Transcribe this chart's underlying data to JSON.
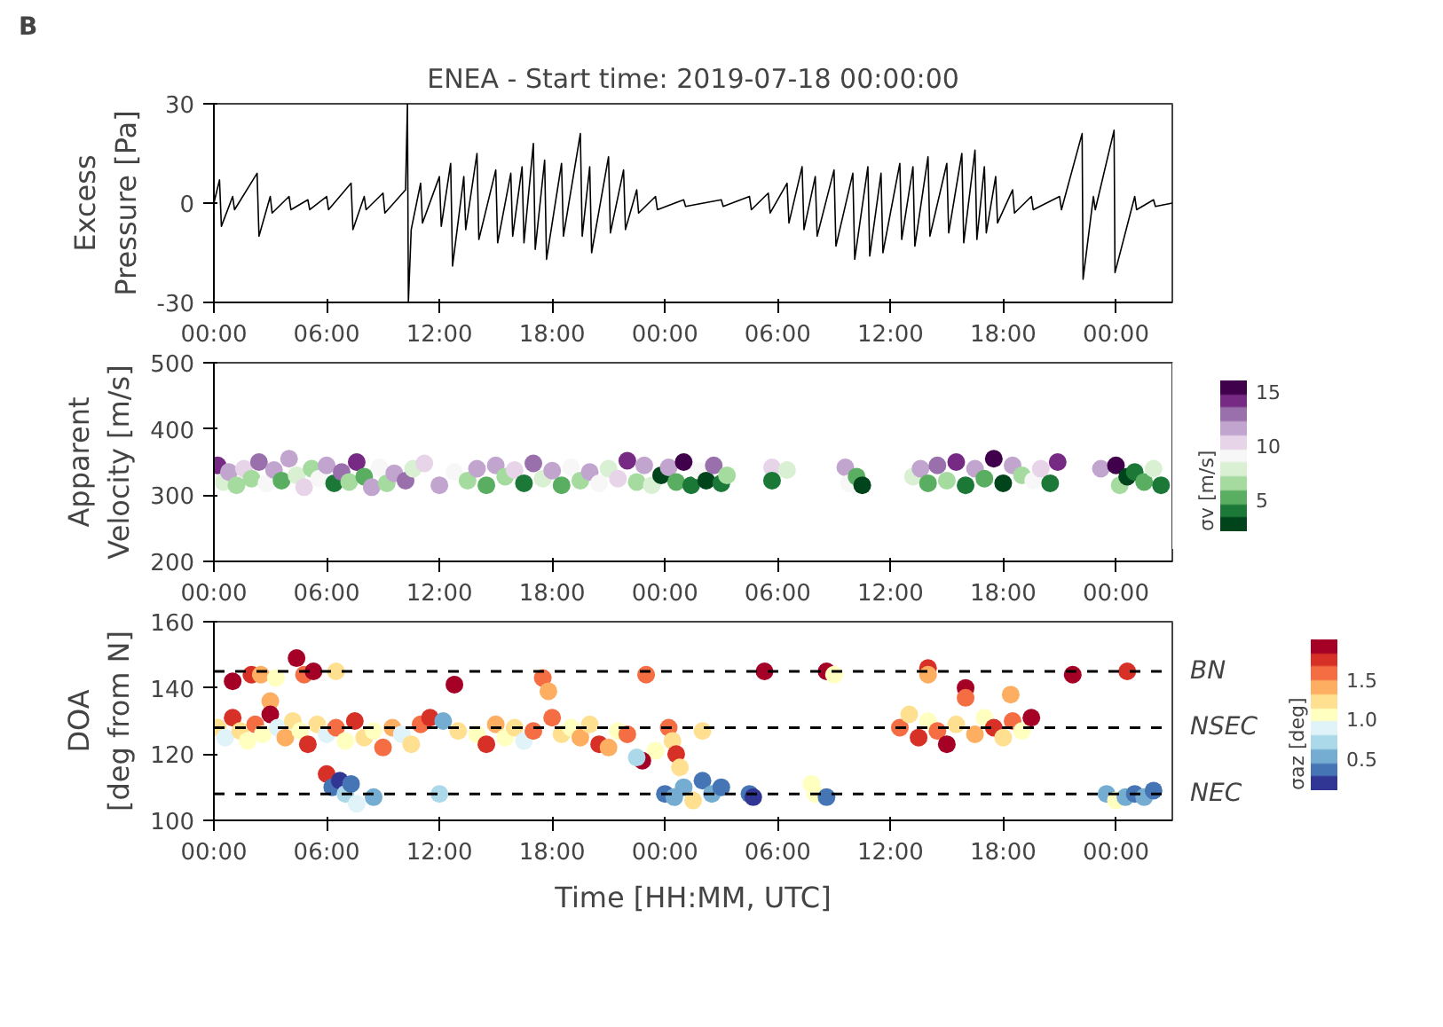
{
  "chart_data": [
    {
      "type": "line",
      "title": "ENEA - Start time: 2019-07-18 00:00:00",
      "annotations": [
        "B"
      ],
      "ylabel": "Excess\nPressure [Pa]",
      "color": "#000000",
      "x": [
        "2019-07-18T00:00",
        "2019-07-18T00:18",
        "2019-07-18T00:24",
        "2019-07-18T01:00",
        "2019-07-18T01:06",
        "2019-07-18T02:18",
        "2019-07-18T02:24",
        "2019-07-18T03:00",
        "2019-07-18T03:06",
        "2019-07-18T04:00",
        "2019-07-18T04:06",
        "2019-07-18T05:00",
        "2019-07-18T05:06",
        "2019-07-18T06:00",
        "2019-07-18T06:06",
        "2019-07-18T07:18",
        "2019-07-18T07:24",
        "2019-07-18T08:00",
        "2019-07-18T08:06",
        "2019-07-18T09:00",
        "2019-07-18T09:06",
        "2019-07-18T10:12",
        "2019-07-18T10:18",
        "2019-07-18T10:21",
        "2019-07-18T10:30",
        "2019-07-18T11:00",
        "2019-07-18T11:06",
        "2019-07-18T12:00",
        "2019-07-18T12:06",
        "2019-07-18T12:36",
        "2019-07-18T12:42",
        "2019-07-18T13:18",
        "2019-07-18T13:24",
        "2019-07-18T14:00",
        "2019-07-18T14:06",
        "2019-07-18T15:00",
        "2019-07-18T15:06",
        "2019-07-18T15:48",
        "2019-07-18T15:54",
        "2019-07-18T16:24",
        "2019-07-18T16:30",
        "2019-07-18T17:00",
        "2019-07-18T17:06",
        "2019-07-18T17:36",
        "2019-07-18T17:42",
        "2019-07-18T18:30",
        "2019-07-18T18:36",
        "2019-07-18T19:30",
        "2019-07-18T19:36",
        "2019-07-18T20:00",
        "2019-07-18T20:06",
        "2019-07-18T21:00",
        "2019-07-18T21:06",
        "2019-07-18T21:48",
        "2019-07-18T21:54",
        "2019-07-18T22:30",
        "2019-07-18T22:36",
        "2019-07-18T23:30",
        "2019-07-18T23:36",
        "2019-07-19T01:00",
        "2019-07-19T01:06",
        "2019-07-19T03:00",
        "2019-07-19T03:06",
        "2019-07-19T04:30",
        "2019-07-19T04:36",
        "2019-07-19T05:30",
        "2019-07-19T05:36",
        "2019-07-19T06:30",
        "2019-07-19T06:36",
        "2019-07-19T07:18",
        "2019-07-19T07:24",
        "2019-07-19T08:00",
        "2019-07-19T08:06",
        "2019-07-19T09:00",
        "2019-07-19T09:06",
        "2019-07-19T10:00",
        "2019-07-19T10:06",
        "2019-07-19T10:48",
        "2019-07-19T10:54",
        "2019-07-19T11:30",
        "2019-07-19T11:36",
        "2019-07-19T12:30",
        "2019-07-19T12:36",
        "2019-07-19T13:12",
        "2019-07-19T13:18",
        "2019-07-19T14:00",
        "2019-07-19T14:06",
        "2019-07-19T15:00",
        "2019-07-19T15:06",
        "2019-07-19T15:48",
        "2019-07-19T15:54",
        "2019-07-19T16:30",
        "2019-07-19T16:36",
        "2019-07-19T17:00",
        "2019-07-19T17:06",
        "2019-07-19T17:36",
        "2019-07-19T17:42",
        "2019-07-19T18:30",
        "2019-07-19T18:36",
        "2019-07-19T19:30",
        "2019-07-19T19:36",
        "2019-07-19T21:00",
        "2019-07-19T21:06",
        "2019-07-19T22:12",
        "2019-07-19T22:15",
        "2019-07-19T22:48",
        "2019-07-19T22:54",
        "2019-07-19T23:54",
        "2019-07-19T23:57",
        "2019-07-20T01:00",
        "2019-07-20T01:06",
        "2019-07-20T02:00",
        "2019-07-20T02:06",
        "2019-07-20T03:00"
      ],
      "values": [
        0,
        7,
        -7,
        2,
        -2,
        9,
        -10,
        2,
        -3,
        2,
        -2,
        1,
        -2,
        2,
        -2,
        6,
        -8,
        2,
        -2,
        3,
        -3,
        4,
        30,
        -30,
        -8,
        6,
        -6,
        8,
        -7,
        12,
        -19,
        8,
        -8,
        15,
        -11,
        10,
        -12,
        9,
        -10,
        11,
        -12,
        18,
        -14,
        13,
        -17,
        12,
        -10,
        21,
        -10,
        11,
        -15,
        14,
        -9,
        10,
        -8,
        4,
        -3,
        2,
        -2,
        1,
        -1,
        1,
        -1,
        2,
        -2,
        3,
        -3,
        6,
        -6,
        11,
        -8,
        8,
        -10,
        10,
        -13,
        9,
        -17,
        11,
        -16,
        9,
        -15,
        12,
        -11,
        11,
        -13,
        14,
        -10,
        12,
        -9,
        15,
        -12,
        16,
        -11,
        11,
        -9,
        8,
        -6,
        4,
        -3,
        2,
        -2,
        2,
        -2,
        21,
        -23,
        2,
        -2,
        22,
        -21,
        2,
        -2,
        1,
        -1,
        0
      ],
      "xlim": [
        "2019-07-18T00:00",
        "2019-07-20T03:00"
      ],
      "xticks": [
        {
          "value": "2019-07-18T00:00",
          "label": "00:00"
        },
        {
          "value": "2019-07-18T06:00",
          "label": "06:00"
        },
        {
          "value": "2019-07-18T12:00",
          "label": "12:00"
        },
        {
          "value": "2019-07-18T18:00",
          "label": "18:00"
        },
        {
          "value": "2019-07-19T00:00",
          "label": "00:00"
        },
        {
          "value": "2019-07-19T06:00",
          "label": "06:00"
        },
        {
          "value": "2019-07-19T12:00",
          "label": "12:00"
        },
        {
          "value": "2019-07-19T18:00",
          "label": "18:00"
        },
        {
          "value": "2019-07-20T00:00",
          "label": "00:00"
        }
      ],
      "ylim": [
        -30,
        30
      ],
      "yticks": [
        -30,
        0,
        30
      ]
    },
    {
      "type": "scatter",
      "ylabel": "Apparent\nVelocity [m/s]",
      "clabel": "σv [m/s]",
      "marker": "circle",
      "clim": [
        2,
        16
      ],
      "cticks": [
        5,
        10,
        15
      ],
      "x": [
        "2019-07-18T00:12",
        "2019-07-18T00:30",
        "2019-07-18T00:48",
        "2019-07-18T01:12",
        "2019-07-18T01:36",
        "2019-07-18T02:00",
        "2019-07-18T02:24",
        "2019-07-18T02:48",
        "2019-07-18T03:12",
        "2019-07-18T03:36",
        "2019-07-18T04:00",
        "2019-07-18T04:24",
        "2019-07-18T04:48",
        "2019-07-18T05:12",
        "2019-07-18T05:36",
        "2019-07-18T06:00",
        "2019-07-18T06:24",
        "2019-07-18T06:48",
        "2019-07-18T07:12",
        "2019-07-18T07:36",
        "2019-07-18T08:00",
        "2019-07-18T08:24",
        "2019-07-18T08:48",
        "2019-07-18T09:12",
        "2019-07-18T09:36",
        "2019-07-18T10:12",
        "2019-07-18T10:36",
        "2019-07-18T11:12",
        "2019-07-18T12:00",
        "2019-07-18T12:48",
        "2019-07-18T13:30",
        "2019-07-18T14:00",
        "2019-07-18T14:30",
        "2019-07-18T15:00",
        "2019-07-18T15:30",
        "2019-07-18T16:00",
        "2019-07-18T16:30",
        "2019-07-18T17:00",
        "2019-07-18T17:30",
        "2019-07-18T18:00",
        "2019-07-18T18:30",
        "2019-07-18T19:00",
        "2019-07-18T19:30",
        "2019-07-18T20:00",
        "2019-07-18T20:30",
        "2019-07-18T21:00",
        "2019-07-18T21:30",
        "2019-07-18T22:00",
        "2019-07-18T22:30",
        "2019-07-18T22:54",
        "2019-07-18T23:18",
        "2019-07-18T23:48",
        "2019-07-19T00:12",
        "2019-07-19T00:36",
        "2019-07-19T01:00",
        "2019-07-19T01:24",
        "2019-07-19T01:48",
        "2019-07-19T02:12",
        "2019-07-19T02:36",
        "2019-07-19T03:00",
        "2019-07-19T03:18",
        "2019-07-19T05:42",
        "2019-07-19T05:42",
        "2019-07-19T06:30",
        "2019-07-19T09:36",
        "2019-07-19T09:48",
        "2019-07-19T10:12",
        "2019-07-19T10:30",
        "2019-07-19T13:12",
        "2019-07-19T13:36",
        "2019-07-19T14:00",
        "2019-07-19T14:30",
        "2019-07-19T15:00",
        "2019-07-19T15:30",
        "2019-07-19T16:00",
        "2019-07-19T16:30",
        "2019-07-19T17:00",
        "2019-07-19T17:30",
        "2019-07-19T18:00",
        "2019-07-19T18:30",
        "2019-07-19T19:00",
        "2019-07-19T19:36",
        "2019-07-19T20:00",
        "2019-07-19T20:30",
        "2019-07-19T20:54",
        "2019-07-19T23:12",
        "2019-07-20T00:00",
        "2019-07-20T00:12",
        "2019-07-20T00:36",
        "2019-07-20T01:00",
        "2019-07-20T01:30",
        "2019-07-20T02:00",
        "2019-07-20T02:24"
      ],
      "values": [
        345,
        320,
        335,
        315,
        340,
        325,
        350,
        318,
        338,
        322,
        355,
        330,
        312,
        340,
        325,
        345,
        318,
        335,
        320,
        350,
        328,
        312,
        342,
        318,
        333,
        322,
        340,
        348,
        315,
        335,
        322,
        340,
        315,
        345,
        328,
        338,
        318,
        348,
        325,
        337,
        315,
        342,
        322,
        335,
        318,
        340,
        325,
        352,
        320,
        345,
        315,
        330,
        342,
        320,
        350,
        315,
        337,
        322,
        345,
        318,
        330,
        342,
        322,
        338,
        342,
        318,
        328,
        315,
        328,
        340,
        318,
        345,
        322,
        350,
        315,
        340,
        325,
        355,
        318,
        345,
        330,
        322,
        340,
        318,
        350,
        340,
        345,
        315,
        328,
        335,
        320,
        340,
        315
      ],
      "cvalues": [
        14,
        8,
        12,
        6,
        10,
        7,
        13,
        9,
        11,
        5,
        12,
        8,
        10,
        6,
        9,
        11,
        4,
        13,
        7,
        14,
        5,
        12,
        9,
        6,
        11,
        13,
        8,
        10,
        12,
        9,
        6,
        11,
        5,
        12,
        7,
        10,
        4,
        13,
        8,
        11,
        5,
        9,
        7,
        11,
        9,
        8,
        10,
        14,
        6,
        12,
        8,
        3,
        11,
        5,
        15,
        4,
        9,
        3,
        13,
        4,
        7,
        10,
        4,
        8,
        12,
        9,
        5,
        3,
        8,
        12,
        5,
        13,
        6,
        14,
        4,
        11,
        5,
        15,
        3,
        12,
        6,
        9,
        10,
        4,
        14,
        11,
        15,
        7,
        3,
        4,
        5,
        8,
        4
      ],
      "xlim": [
        "2019-07-18T00:00",
        "2019-07-20T03:00"
      ],
      "xticks": [
        {
          "value": "2019-07-18T00:00",
          "label": "00:00"
        },
        {
          "value": "2019-07-18T06:00",
          "label": "06:00"
        },
        {
          "value": "2019-07-18T12:00",
          "label": "12:00"
        },
        {
          "value": "2019-07-18T18:00",
          "label": "18:00"
        },
        {
          "value": "2019-07-19T00:00",
          "label": "00:00"
        },
        {
          "value": "2019-07-19T06:00",
          "label": "06:00"
        },
        {
          "value": "2019-07-19T12:00",
          "label": "12:00"
        },
        {
          "value": "2019-07-19T18:00",
          "label": "18:00"
        },
        {
          "value": "2019-07-20T00:00",
          "label": "00:00"
        }
      ],
      "ylim": [
        200,
        500
      ],
      "yticks": [
        200,
        300,
        400,
        500
      ]
    },
    {
      "type": "scatter",
      "xlabel": "Time [HH:MM, UTC]",
      "ylabel": "DOA\n[deg from N]",
      "clabel": "σaz [deg]",
      "marker": "circle",
      "clim": [
        0.1,
        2.0
      ],
      "cticks": [
        0.5,
        {
          "value": 1,
          "label": "1.0"
        },
        1.5
      ],
      "x": [
        "2019-07-18T01:00",
        "2019-07-18T02:00",
        "2019-07-18T02:30",
        "2019-07-18T03:00",
        "2019-07-18T03:18",
        "2019-07-18T04:24",
        "2019-07-18T04:48",
        "2019-07-18T05:18",
        "2019-07-18T06:30",
        "2019-07-18T12:48",
        "2019-07-18T17:30",
        "2019-07-18T17:48",
        "2019-07-18T23:00",
        "2019-07-19T05:18",
        "2019-07-19T08:36",
        "2019-07-19T09:00",
        "2019-07-19T14:00",
        "2019-07-19T14:00",
        "2019-07-19T16:00",
        "2019-07-19T16:00",
        "2019-07-19T18:24",
        "2019-07-19T21:42",
        "2019-07-20T00:36",
        "2019-07-18T00:12",
        "2019-07-18T00:36",
        "2019-07-18T01:00",
        "2019-07-18T01:24",
        "2019-07-18T01:48",
        "2019-07-18T02:12",
        "2019-07-18T02:36",
        "2019-07-18T03:00",
        "2019-07-18T03:24",
        "2019-07-18T03:48",
        "2019-07-18T04:12",
        "2019-07-18T04:36",
        "2019-07-18T05:00",
        "2019-07-18T05:30",
        "2019-07-18T06:00",
        "2019-07-18T06:30",
        "2019-07-18T07:00",
        "2019-07-18T07:30",
        "2019-07-18T08:00",
        "2019-07-18T08:30",
        "2019-07-18T09:00",
        "2019-07-18T09:30",
        "2019-07-18T10:00",
        "2019-07-18T10:30",
        "2019-07-18T11:00",
        "2019-07-18T11:30",
        "2019-07-18T12:12",
        "2019-07-18T13:00",
        "2019-07-18T14:00",
        "2019-07-18T14:30",
        "2019-07-18T15:00",
        "2019-07-18T15:30",
        "2019-07-18T16:00",
        "2019-07-18T16:30",
        "2019-07-18T17:00",
        "2019-07-18T18:00",
        "2019-07-18T18:30",
        "2019-07-18T19:00",
        "2019-07-18T19:30",
        "2019-07-18T20:00",
        "2019-07-18T20:30",
        "2019-07-18T21:30",
        "2019-07-18T22:00",
        "2019-07-18T23:30",
        "2019-07-19T00:12",
        "2019-07-19T00:24",
        "2019-07-19T00:36",
        "2019-07-19T00:48",
        "2019-07-18T22:48",
        "2019-07-18T22:30",
        "2019-07-18T21:00",
        "2019-07-19T02:00",
        "2019-07-18T06:00",
        "2019-07-18T06:18",
        "2019-07-18T06:42",
        "2019-07-18T07:00",
        "2019-07-18T07:18",
        "2019-07-18T07:36",
        "2019-07-18T08:30",
        "2019-07-18T12:00",
        "2019-07-19T00:00",
        "2019-07-19T00:30",
        "2019-07-19T01:00",
        "2019-07-19T01:30",
        "2019-07-19T02:00",
        "2019-07-19T02:30",
        "2019-07-19T03:00",
        "2019-07-19T04:30",
        "2019-07-19T04:42",
        "2019-07-19T07:48",
        "2019-07-19T08:00",
        "2019-07-19T08:36",
        "2019-07-19T23:30",
        "2019-07-20T00:00",
        "2019-07-20T00:30",
        "2019-07-20T01:00",
        "2019-07-20T01:30",
        "2019-07-20T02:00",
        "2019-07-19T12:30",
        "2019-07-19T13:00",
        "2019-07-19T13:30",
        "2019-07-19T14:00",
        "2019-07-19T14:30",
        "2019-07-19T15:00",
        "2019-07-19T15:30",
        "2019-07-19T16:30",
        "2019-07-19T17:00",
        "2019-07-19T17:30",
        "2019-07-19T18:00",
        "2019-07-19T18:30",
        "2019-07-19T19:00",
        "2019-07-19T19:30"
      ],
      "values": [
        142,
        144,
        144,
        136,
        143,
        149,
        144,
        145,
        145,
        141,
        143,
        139,
        144,
        145,
        145,
        144,
        146,
        144,
        140,
        137,
        138,
        144,
        145,
        128,
        125,
        131,
        127,
        124,
        129,
        126,
        132,
        128,
        125,
        130,
        127,
        123,
        129,
        126,
        128,
        124,
        130,
        125,
        127,
        122,
        128,
        126,
        123,
        129,
        131,
        130,
        127,
        126,
        123,
        129,
        125,
        128,
        124,
        127,
        131,
        126,
        128,
        125,
        129,
        123,
        127,
        126,
        121,
        128,
        124,
        120,
        116,
        118,
        119,
        122,
        127,
        114,
        110,
        112,
        108,
        111,
        105,
        107,
        108,
        108,
        107,
        110,
        106,
        112,
        108,
        110,
        108,
        107,
        111,
        108,
        107,
        108,
        106,
        107,
        108,
        107,
        109,
        128,
        132,
        125,
        130,
        127,
        123,
        129,
        126,
        131,
        128,
        125,
        130,
        127,
        131
      ],
      "cvalues": [
        1.9,
        1.8,
        1.4,
        1.4,
        1.1,
        1.9,
        1.5,
        1.9,
        1.3,
        1.9,
        1.5,
        1.4,
        1.5,
        1.9,
        1.9,
        1.0,
        1.7,
        1.4,
        1.9,
        1.6,
        1.4,
        1.9,
        1.7,
        1.2,
        0.9,
        1.7,
        1.3,
        1.0,
        1.6,
        1.1,
        1.9,
        0.8,
        1.4,
        1.2,
        1.0,
        1.7,
        1.3,
        0.9,
        1.5,
        1.1,
        1.8,
        1.2,
        1.0,
        1.6,
        1.4,
        0.8,
        1.3,
        1.5,
        1.8,
        0.6,
        1.2,
        1.0,
        1.7,
        1.4,
        1.1,
        1.3,
        0.9,
        1.5,
        1.6,
        1.2,
        1.0,
        1.4,
        1.3,
        1.8,
        1.1,
        1.5,
        1.0,
        1.5,
        1.3,
        1.8,
        1.2,
        1.9,
        0.7,
        1.4,
        1.2,
        1.7,
        0.4,
        0.2,
        0.7,
        0.3,
        0.8,
        0.5,
        0.7,
        0.3,
        0.6,
        0.5,
        1.2,
        0.4,
        0.6,
        0.3,
        0.4,
        0.1,
        1.0,
        1.1,
        0.3,
        0.5,
        1.0,
        0.6,
        0.4,
        0.5,
        0.3,
        1.6,
        1.3,
        1.8,
        1.1,
        1.5,
        1.9,
        1.2,
        1.4,
        1.0,
        1.7,
        1.3,
        1.6,
        1.1,
        1.9
      ],
      "ref_lines": [
        {
          "axis": "y",
          "value": 145,
          "label": "BN",
          "color": "#000000",
          "line_style": "dashed"
        },
        {
          "axis": "y",
          "value": 128,
          "label": "NSEC",
          "color": "#000000",
          "line_style": "dashed"
        },
        {
          "axis": "y",
          "value": 108,
          "label": "NEC",
          "color": "#000000",
          "line_style": "dashed"
        }
      ],
      "xlim": [
        "2019-07-18T00:00",
        "2019-07-20T03:00"
      ],
      "xticks": [
        {
          "value": "2019-07-18T00:00",
          "label": "00:00"
        },
        {
          "value": "2019-07-18T06:00",
          "label": "06:00"
        },
        {
          "value": "2019-07-18T12:00",
          "label": "12:00"
        },
        {
          "value": "2019-07-18T18:00",
          "label": "18:00"
        },
        {
          "value": "2019-07-19T00:00",
          "label": "00:00"
        },
        {
          "value": "2019-07-19T06:00",
          "label": "06:00"
        },
        {
          "value": "2019-07-19T12:00",
          "label": "12:00"
        },
        {
          "value": "2019-07-19T18:00",
          "label": "18:00"
        },
        {
          "value": "2019-07-20T00:00",
          "label": "00:00"
        }
      ],
      "ylim": [
        100,
        160
      ],
      "yticks": [
        100,
        120,
        140,
        160
      ]
    }
  ]
}
